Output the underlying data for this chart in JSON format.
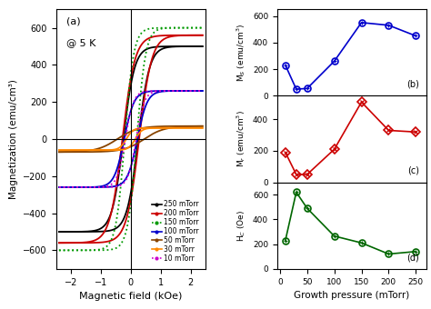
{
  "left_panel": {
    "label": "(a)",
    "annotation": "@ 5 K",
    "xlabel": "Magnetic field (kOe)",
    "ylabel": "Magnetization (emu/cm³)",
    "xlim": [
      -2.5,
      2.5
    ],
    "ylim": [
      -700,
      700
    ],
    "xticks": [
      -2,
      -1,
      0,
      1,
      2
    ],
    "yticks": [
      -600,
      -400,
      -200,
      0,
      200,
      400,
      600
    ],
    "curves": [
      {
        "label": "250 mTorr",
        "color": "#000000",
        "ms": 500,
        "mr": 430,
        "hc": 0.25,
        "dotted": false
      },
      {
        "label": "200 mTorr",
        "color": "#cc0000",
        "ms": 560,
        "mr": 490,
        "hc": 0.28,
        "dotted": false
      },
      {
        "label": "150 mTorr",
        "color": "#009900",
        "ms": 600,
        "mr": 540,
        "hc": 0.2,
        "dotted": true
      },
      {
        "label": "100 mTorr",
        "color": "#0000cc",
        "ms": 260,
        "mr": 220,
        "hc": 0.22,
        "dotted": false
      },
      {
        "label": "50 mTorr",
        "color": "#884400",
        "ms": 70,
        "mr": 50,
        "hc": 0.45,
        "dotted": false
      },
      {
        "label": "30 mTorr",
        "color": "#ff8800",
        "ms": 60,
        "mr": 30,
        "hc": 0.15,
        "dotted": false
      },
      {
        "label": "10 mTorr",
        "color": "#cc00cc",
        "ms": 260,
        "mr": 230,
        "hc": 0.18,
        "dotted": true
      }
    ]
  },
  "right_panels": {
    "pressures": [
      10,
      30,
      50,
      100,
      150,
      200,
      250
    ],
    "Ms": [
      230,
      50,
      55,
      260,
      550,
      530,
      450
    ],
    "Mr": [
      190,
      50,
      50,
      210,
      510,
      330,
      320
    ],
    "Hc": [
      230,
      620,
      490,
      265,
      210,
      120,
      140
    ],
    "xlabel": "Growth pressure (mTorr)",
    "Ms_ylim": [
      0,
      650
    ],
    "Mr_ylim": [
      0,
      550
    ],
    "Hc_ylim": [
      0,
      700
    ],
    "Ms_yticks": [
      0,
      200,
      400,
      600
    ],
    "Mr_yticks": [
      0,
      200,
      400
    ],
    "Hc_yticks": [
      0,
      200,
      400,
      600
    ],
    "xticks": [
      0,
      50,
      100,
      150,
      200,
      250
    ],
    "panel_b": "(b)",
    "panel_c": "(c)",
    "panel_d": "(d)",
    "color_Ms": "#0000cc",
    "color_Mr": "#cc0000",
    "color_Hc": "#006600"
  }
}
